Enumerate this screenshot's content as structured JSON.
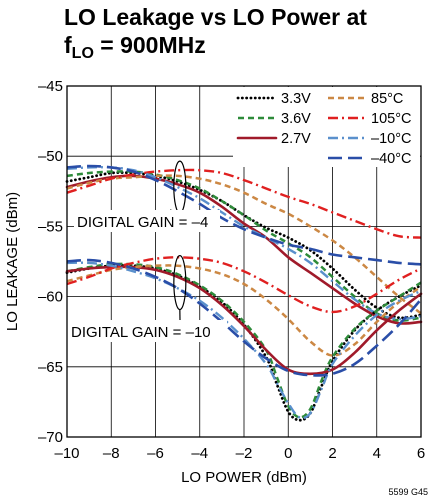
{
  "chart_data": {
    "type": "line",
    "title_line1": "LO Leakage vs LO Power at",
    "title_line2_main": "f",
    "title_line2_sub": "LO",
    "title_line2_rest": " = 900MHz",
    "xlabel": "LO POWER (dBm)",
    "ylabel": "LO LEAKAGE (dBm)",
    "xlim": [
      -10,
      6
    ],
    "ylim": [
      -70,
      -45
    ],
    "xticks": [
      "–10",
      "–8",
      "–6",
      "–4",
      "–2",
      "0",
      "2",
      "4",
      "6"
    ],
    "yticks": [
      "–70",
      "–65",
      "–60",
      "–55",
      "–50",
      "–45"
    ],
    "grid": true,
    "legend_position": "top-right",
    "annotations": {
      "upper": "DIGITAL GAIN = –4",
      "lower": "DIGITAL GAIN = –10"
    },
    "part_number": "5599 G45",
    "series": [
      {
        "name": "3.3V",
        "color": "#000000",
        "dash": "dotted",
        "group": "gain-4",
        "x": [
          -10,
          -9,
          -8,
          -7,
          -6,
          -5,
          -4,
          -3,
          -2,
          -1,
          0,
          1,
          2,
          3,
          4,
          5,
          6
        ],
        "y": [
          -51.8,
          -51.5,
          -51.2,
          -51.2,
          -51.4,
          -51.8,
          -52.4,
          -53.2,
          -54.2,
          -55.1,
          -55.8,
          -56.7,
          -58.0,
          -59.5,
          -60.8,
          -61.5,
          -61.3
        ]
      },
      {
        "name": "3.6V",
        "color": "#2e8b3a",
        "dash": "dashed",
        "group": "gain-4",
        "x": [
          -10,
          -9,
          -8,
          -7,
          -6,
          -5,
          -4,
          -3,
          -2,
          -1,
          0,
          1,
          2,
          3,
          4,
          5,
          6
        ],
        "y": [
          -51.4,
          -51.2,
          -51.1,
          -51.1,
          -51.3,
          -51.7,
          -52.3,
          -53.2,
          -54.2,
          -55.3,
          -56.2,
          -57.2,
          -58.6,
          -60.0,
          -61.2,
          -61.7,
          -61.5
        ]
      },
      {
        "name": "2.7V",
        "color": "#a01a2a",
        "dash": "solid",
        "group": "gain-4",
        "x": [
          -10,
          -9,
          -8,
          -7,
          -6,
          -5,
          -4,
          -3,
          -2,
          -1,
          0,
          1,
          2,
          3,
          4,
          5,
          6
        ],
        "y": [
          -52.2,
          -51.8,
          -51.5,
          -51.4,
          -51.6,
          -52.0,
          -52.6,
          -53.6,
          -54.8,
          -55.8,
          -57.2,
          -58.3,
          -59.4,
          -60.5,
          -61.4,
          -61.9,
          -61.8
        ]
      },
      {
        "name": "85°C",
        "color": "#cc8844",
        "dash": "dashed",
        "group": "gain-4",
        "x": [
          -10,
          -9,
          -8,
          -7,
          -6,
          -5,
          -4,
          -3,
          -2,
          -1,
          0,
          1,
          2,
          3,
          4,
          5,
          6
        ],
        "y": [
          -52.3,
          -51.9,
          -51.6,
          -51.5,
          -51.4,
          -51.4,
          -51.6,
          -52.0,
          -52.6,
          -53.4,
          -54.1,
          -55.0,
          -56.0,
          -57.2,
          -58.6,
          -60.0,
          -61.2
        ]
      },
      {
        "name": "105°C",
        "color": "#e02020",
        "dash": "dashdot",
        "group": "gain-4",
        "x": [
          -10,
          -9,
          -8,
          -7,
          -6,
          -5,
          -4,
          -3,
          -2,
          -1,
          0,
          1,
          2,
          3,
          4,
          5,
          6
        ],
        "y": [
          -52.6,
          -52.1,
          -51.6,
          -51.3,
          -51.1,
          -51.0,
          -51.0,
          -51.2,
          -51.7,
          -52.3,
          -52.9,
          -53.4,
          -54.0,
          -54.6,
          -55.2,
          -55.7,
          -55.8
        ]
      },
      {
        "name": "–10°C",
        "color": "#5a90cc",
        "dash": "dashdot",
        "group": "gain-4",
        "x": [
          -10,
          -9,
          -8,
          -7,
          -6,
          -5,
          -4,
          -3,
          -2,
          -1,
          0,
          1,
          2,
          3,
          4,
          5,
          6
        ],
        "y": [
          -50.9,
          -50.8,
          -50.8,
          -51.0,
          -51.5,
          -52.2,
          -53.0,
          -54.0,
          -55.0,
          -55.8,
          -56.6,
          -57.6,
          -58.9,
          -60.2,
          -61.2,
          -61.6,
          -61.4
        ]
      },
      {
        "name": "–40°C",
        "color": "#2a4ea8",
        "dash": "longdash",
        "group": "gain-4",
        "x": [
          -10,
          -9,
          -8,
          -7,
          -6,
          -5,
          -4,
          -3,
          -2,
          -1,
          0,
          1,
          2,
          3,
          4,
          5,
          6
        ],
        "y": [
          -50.8,
          -50.7,
          -50.8,
          -51.1,
          -51.7,
          -52.5,
          -53.4,
          -54.4,
          -55.2,
          -55.8,
          -56.3,
          -56.6,
          -57.0,
          -57.2,
          -57.4,
          -57.6,
          -57.7
        ]
      },
      {
        "name": "",
        "color": "#000000",
        "dash": "dotted",
        "group": "gain-10",
        "x": [
          -10,
          -9,
          -8,
          -7,
          -6,
          -5,
          -4,
          -3,
          -2,
          -1,
          -0.5,
          0,
          0.5,
          1,
          1.5,
          2,
          3,
          4,
          5,
          6
        ],
        "y": [
          -58.3,
          -58.0,
          -57.8,
          -57.8,
          -58.0,
          -58.5,
          -59.3,
          -60.4,
          -62.0,
          -64.3,
          -66.3,
          -68.2,
          -68.8,
          -68.3,
          -66.4,
          -64.6,
          -62.4,
          -61.0,
          -60.0,
          -59.2
        ]
      },
      {
        "name": "",
        "color": "#2e8b3a",
        "dash": "dashed",
        "group": "gain-10",
        "x": [
          -10,
          -9,
          -8,
          -7,
          -6,
          -5,
          -4,
          -3,
          -2,
          -1,
          -0.5,
          0,
          0.5,
          1,
          1.5,
          2,
          3,
          4,
          5,
          6
        ],
        "y": [
          -58.2,
          -57.9,
          -57.7,
          -57.7,
          -57.9,
          -58.4,
          -59.2,
          -60.3,
          -61.8,
          -63.8,
          -65.8,
          -67.8,
          -68.6,
          -68.0,
          -66.0,
          -64.3,
          -62.3,
          -61.0,
          -60.0,
          -59.0
        ]
      },
      {
        "name": "",
        "color": "#a01a2a",
        "dash": "solid",
        "group": "gain-10",
        "x": [
          -10,
          -9,
          -8,
          -7,
          -6,
          -5,
          -4,
          -3,
          -2,
          -1,
          0,
          1,
          2,
          3,
          4,
          5,
          6
        ],
        "y": [
          -58.2,
          -58.0,
          -57.9,
          -57.9,
          -58.1,
          -58.6,
          -59.4,
          -60.6,
          -62.1,
          -63.8,
          -65.2,
          -65.5,
          -65.2,
          -64.0,
          -62.4,
          -61.0,
          -59.8
        ]
      },
      {
        "name": "",
        "color": "#cc8844",
        "dash": "dashed",
        "group": "gain-10",
        "x": [
          -10,
          -9,
          -8,
          -7,
          -6,
          -5,
          -4,
          -3,
          -2,
          -1,
          0,
          1,
          2,
          3,
          4,
          5,
          6
        ],
        "y": [
          -58.9,
          -58.5,
          -58.1,
          -57.9,
          -57.8,
          -57.8,
          -58.0,
          -58.4,
          -59.1,
          -60.2,
          -61.6,
          -63.2,
          -64.2,
          -63.4,
          -61.8,
          -60.4,
          -59.3
        ]
      },
      {
        "name": "",
        "color": "#e02020",
        "dash": "dashdot",
        "group": "gain-10",
        "x": [
          -10,
          -9,
          -8,
          -7,
          -6,
          -5,
          -4,
          -3,
          -2,
          -1,
          0,
          1,
          2,
          3,
          4,
          5,
          6
        ],
        "y": [
          -59.1,
          -58.6,
          -58.0,
          -57.6,
          -57.3,
          -57.2,
          -57.3,
          -57.6,
          -58.2,
          -59.0,
          -59.9,
          -60.7,
          -61.1,
          -60.7,
          -59.8,
          -58.8,
          -58.0
        ]
      },
      {
        "name": "",
        "color": "#5a90cc",
        "dash": "dashdot",
        "group": "gain-10",
        "x": [
          -10,
          -9,
          -8,
          -7,
          -6,
          -5,
          -4,
          -3,
          -2,
          -1,
          -0.5,
          0,
          0.5,
          1,
          1.5,
          2,
          3,
          4,
          5,
          6
        ],
        "y": [
          -57.6,
          -57.6,
          -57.8,
          -58.2,
          -58.7,
          -59.4,
          -60.3,
          -61.5,
          -63.0,
          -64.8,
          -66.2,
          -67.6,
          -68.6,
          -68.3,
          -66.6,
          -64.8,
          -62.8,
          -61.3,
          -60.3,
          -59.6
        ]
      },
      {
        "name": "",
        "color": "#2a4ea8",
        "dash": "longdash",
        "group": "gain-10",
        "x": [
          -10,
          -9,
          -8,
          -7,
          -6,
          -5,
          -4,
          -3,
          -2,
          -1,
          0,
          1,
          2,
          3,
          4,
          5,
          6
        ],
        "y": [
          -57.5,
          -57.4,
          -57.6,
          -58.0,
          -58.6,
          -59.4,
          -60.5,
          -61.8,
          -63.2,
          -64.4,
          -65.3,
          -65.6,
          -65.5,
          -64.8,
          -63.5,
          -62.0,
          -60.2
        ]
      }
    ]
  }
}
